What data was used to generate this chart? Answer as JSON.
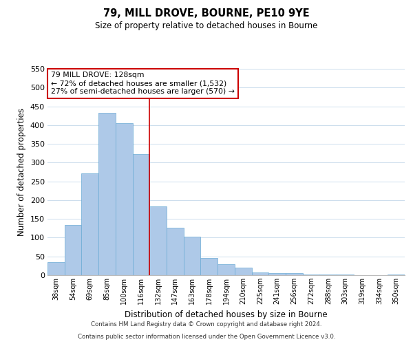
{
  "title": "79, MILL DROVE, BOURNE, PE10 9YE",
  "subtitle": "Size of property relative to detached houses in Bourne",
  "xlabel": "Distribution of detached houses by size in Bourne",
  "ylabel": "Number of detached properties",
  "bar_labels": [
    "38sqm",
    "54sqm",
    "69sqm",
    "85sqm",
    "100sqm",
    "116sqm",
    "132sqm",
    "147sqm",
    "163sqm",
    "178sqm",
    "194sqm",
    "210sqm",
    "225sqm",
    "241sqm",
    "256sqm",
    "272sqm",
    "288sqm",
    "303sqm",
    "319sqm",
    "334sqm",
    "350sqm"
  ],
  "bar_values": [
    35,
    133,
    272,
    433,
    405,
    323,
    183,
    127,
    103,
    46,
    30,
    20,
    8,
    5,
    5,
    2,
    2,
    1,
    0,
    0,
    2
  ],
  "bar_color": "#aec9e8",
  "bar_edge_color": "#6aaad4",
  "highlight_line_index": 6,
  "highlight_line_color": "#cc0000",
  "ylim": [
    0,
    550
  ],
  "yticks": [
    0,
    50,
    100,
    150,
    200,
    250,
    300,
    350,
    400,
    450,
    500,
    550
  ],
  "annotation_title": "79 MILL DROVE: 128sqm",
  "annotation_line1": "← 72% of detached houses are smaller (1,532)",
  "annotation_line2": "27% of semi-detached houses are larger (570) →",
  "annotation_box_color": "#ffffff",
  "annotation_box_edge": "#cc0000",
  "footer_line1": "Contains HM Land Registry data © Crown copyright and database right 2024.",
  "footer_line2": "Contains public sector information licensed under the Open Government Licence v3.0.",
  "background_color": "#ffffff",
  "grid_color": "#ccdded"
}
